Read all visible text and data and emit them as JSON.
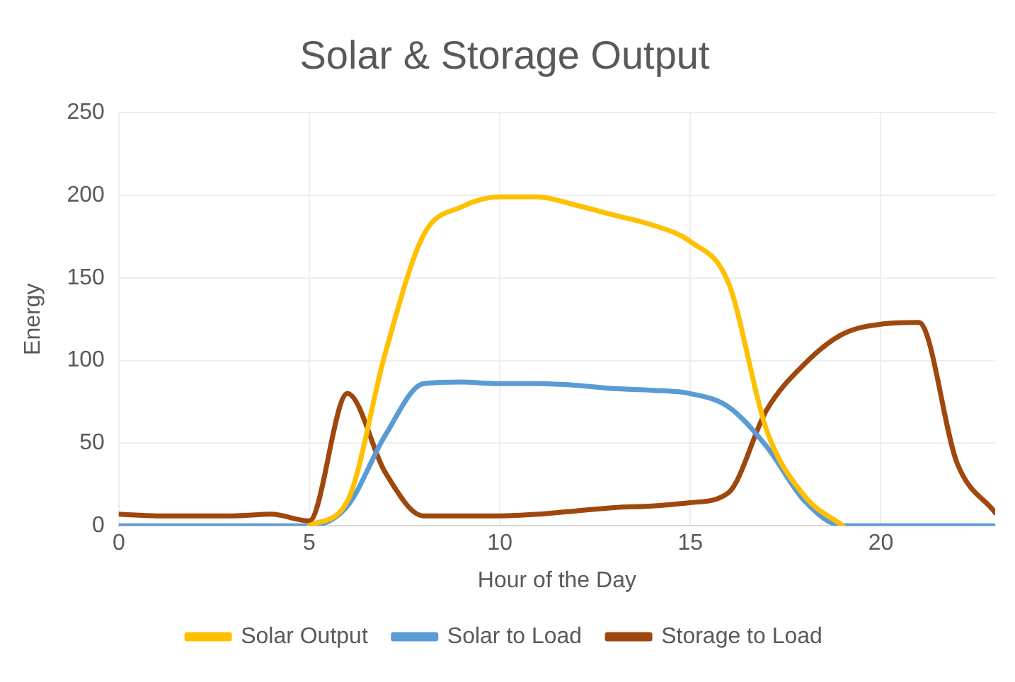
{
  "chart_data": {
    "type": "line",
    "title": "Solar & Storage Output",
    "xlabel": "Hour of the Day",
    "ylabel": "Energy",
    "x": [
      0,
      1,
      2,
      3,
      4,
      5,
      6,
      7,
      8,
      9,
      10,
      11,
      12,
      13,
      14,
      15,
      16,
      17,
      18,
      19,
      20,
      21,
      22,
      23
    ],
    "xlim": [
      0,
      23
    ],
    "xticks": [
      0,
      5,
      10,
      15,
      20
    ],
    "ylim": [
      0,
      250
    ],
    "yticks": [
      0,
      50,
      100,
      150,
      200,
      250
    ],
    "grid": true,
    "legend": "bottom",
    "marker": "none",
    "line_style": "solid",
    "series": [
      {
        "name": "Solar Output",
        "color": "#ffc000",
        "values": [
          null,
          null,
          null,
          null,
          null,
          0,
          15,
          105,
          176,
          193,
          199,
          199,
          194,
          188,
          182,
          172,
          147,
          58,
          18,
          0,
          null,
          null,
          null,
          null
        ]
      },
      {
        "name": "Solar to Load",
        "color": "#5b9bd5",
        "values": [
          0,
          0,
          0,
          0,
          0,
          0,
          12,
          55,
          86,
          87,
          86,
          86,
          85,
          83,
          82,
          80,
          72,
          48,
          15,
          0,
          0,
          0,
          0,
          0
        ]
      },
      {
        "name": "Storage to Load",
        "color": "#9e480e",
        "values": [
          7,
          6,
          6,
          6,
          7,
          3,
          80,
          32,
          6,
          6,
          6,
          7,
          9,
          11,
          12,
          14,
          20,
          70,
          98,
          116,
          122,
          123,
          38,
          8
        ]
      }
    ]
  }
}
